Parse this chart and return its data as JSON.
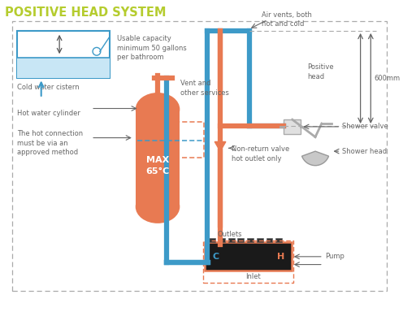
{
  "title": "POSITIVE HEAD SYSTEM",
  "title_color": "#b5cc2e",
  "bg_color": "#ffffff",
  "blue": "#3d9ac8",
  "orange": "#e87a52",
  "dark_gray": "#666666",
  "pump_bg": "#1a1a1a",
  "labels": {
    "cistern": "Cold water cistern",
    "capacity": "Usable capacity\nminimum 50 gallons\nper bathroom",
    "air_vents": "Air vents, both\nhot and cold",
    "positive_head": "Positive\nhead",
    "shower_head": "Shower head",
    "shower_valve": "Shower valve",
    "non_return": "Non-return valve\nhot outlet only",
    "outlets": "Outlets",
    "inlet": "Inlet",
    "pump": "Pump",
    "hot_cylinder": "Hot water cylinder",
    "vent": "Vent and\nother services",
    "max_temp": "MAX\n65°C",
    "hot_connection": "The hot connection\nmust be via an\napproved method",
    "600mm": "600mm"
  }
}
